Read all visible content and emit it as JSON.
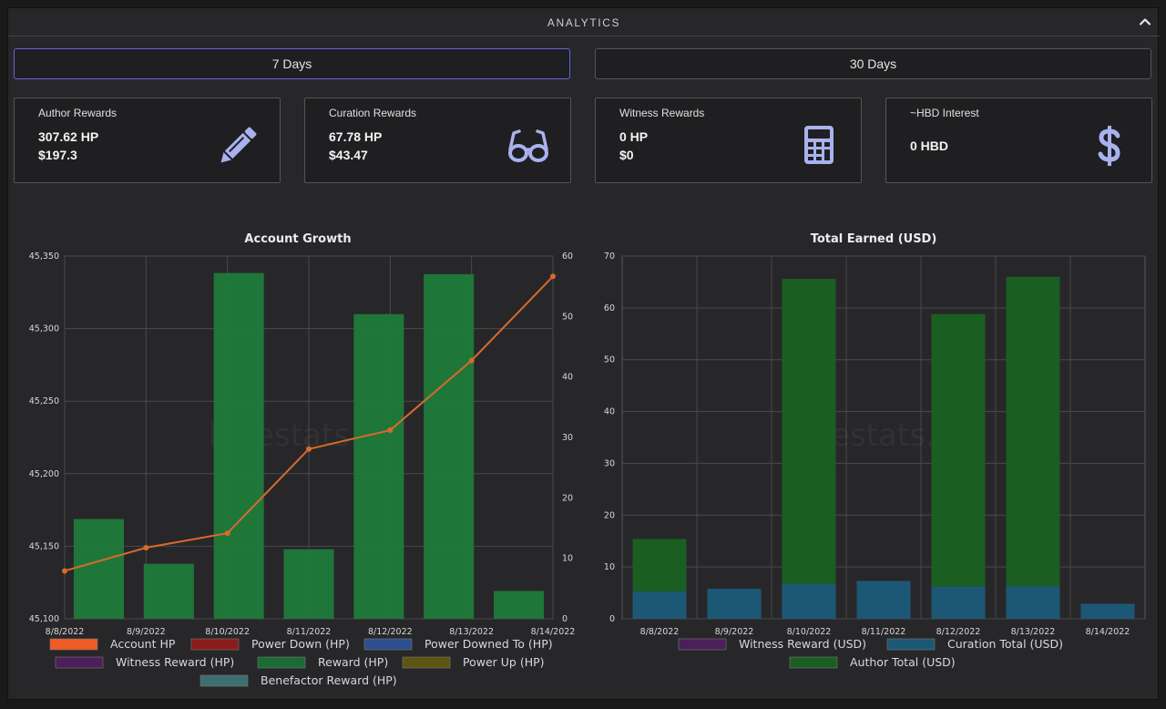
{
  "header": {
    "title": "ANALYTICS"
  },
  "range_buttons": [
    {
      "label": "7 Days",
      "active": true
    },
    {
      "label": "30 Days",
      "active": false
    }
  ],
  "cards": [
    {
      "label": "Author Rewards",
      "line1": "307.62 HP",
      "line2": "$197.3",
      "icon": "pencil-icon"
    },
    {
      "label": "Curation Rewards",
      "line1": "67.78 HP",
      "line2": "$43.47",
      "icon": "glasses-icon"
    },
    {
      "label": "Witness Rewards",
      "line1": "0 HP",
      "line2": "$0",
      "icon": "calculator-icon"
    },
    {
      "label": "~HBD Interest",
      "line1": "0 HBD",
      "icon": "dollar-icon"
    }
  ],
  "colors": {
    "accent": "#6363d6",
    "icon": "#a9b2ee"
  },
  "chart_data": [
    {
      "type": "bar",
      "title": "Account Growth",
      "watermark": "hivestats.io",
      "categories": [
        "8/8/2022",
        "8/9/2022",
        "8/10/2022",
        "8/11/2022",
        "8/12/2022",
        "8/13/2022",
        "8/14/2022"
      ],
      "ylim": [
        45100,
        45350
      ],
      "yticks": [
        "45,100",
        "45,150",
        "45,200",
        "45,250",
        "45,300",
        "45,350"
      ],
      "y2lim": [
        0,
        60
      ],
      "y2ticks": [
        "0",
        "10",
        "20",
        "30",
        "40",
        "50",
        "60"
      ],
      "grid": true,
      "legend_position": "bottom",
      "series": [
        {
          "name": "Account HP",
          "kind": "line",
          "axis": "left",
          "color": "#f05a23",
          "line_color": "#d96a2b",
          "values": [
            45133,
            45149,
            45159,
            45217,
            45230,
            45278,
            45336
          ]
        },
        {
          "name": "Power Down (HP)",
          "kind": "bar",
          "axis": "right",
          "color": "#8b1c1c",
          "values": [
            0,
            0,
            0,
            0,
            0,
            0,
            0
          ]
        },
        {
          "name": "Power Downed To (HP)",
          "kind": "bar",
          "axis": "right",
          "color": "#2d4f8f",
          "values": [
            0,
            0,
            0,
            0,
            0,
            0,
            0
          ]
        },
        {
          "name": "Witness Reward (HP)",
          "kind": "bar",
          "axis": "right",
          "color": "#4b1f5a",
          "values": [
            0,
            0,
            0,
            0,
            0,
            0,
            0
          ]
        },
        {
          "name": "Reward (HP)",
          "kind": "bar",
          "axis": "right",
          "color": "#1b6b35",
          "values": [
            16.5,
            9.1,
            57.2,
            11.5,
            50.4,
            57.0,
            4.6
          ]
        },
        {
          "name": "Power Up (HP)",
          "kind": "bar",
          "axis": "right",
          "color": "#5e5412",
          "values": [
            0,
            0,
            0,
            0,
            0,
            0,
            0
          ]
        },
        {
          "name": "Benefactor Reward (HP)",
          "kind": "bar",
          "axis": "right",
          "color": "#3f6e70",
          "values": [
            0,
            0,
            0,
            0,
            0,
            0,
            0
          ]
        }
      ]
    },
    {
      "type": "bar",
      "stacked": true,
      "title": "Total Earned (USD)",
      "watermark": "hivestats.io",
      "categories": [
        "8/8/2022",
        "8/9/2022",
        "8/10/2022",
        "8/11/2022",
        "8/12/2022",
        "8/13/2022",
        "8/14/2022"
      ],
      "ylim": [
        0,
        70
      ],
      "yticks": [
        "0",
        "10",
        "20",
        "30",
        "40",
        "50",
        "60",
        "70"
      ],
      "grid": true,
      "legend_position": "bottom",
      "series": [
        {
          "name": "Witness Reward (USD)",
          "color": "#4b1f5a",
          "values": [
            0,
            0,
            0,
            0,
            0,
            0,
            0
          ]
        },
        {
          "name": "Curation Total (USD)",
          "color": "#1c5875",
          "values": [
            5.3,
            5.8,
            6.7,
            7.3,
            6.2,
            6.3,
            2.9
          ]
        },
        {
          "name": "Author Total (USD)",
          "color": "#1b5e22",
          "values": [
            10.1,
            0,
            58.9,
            0,
            52.6,
            59.7,
            0
          ]
        }
      ]
    }
  ]
}
